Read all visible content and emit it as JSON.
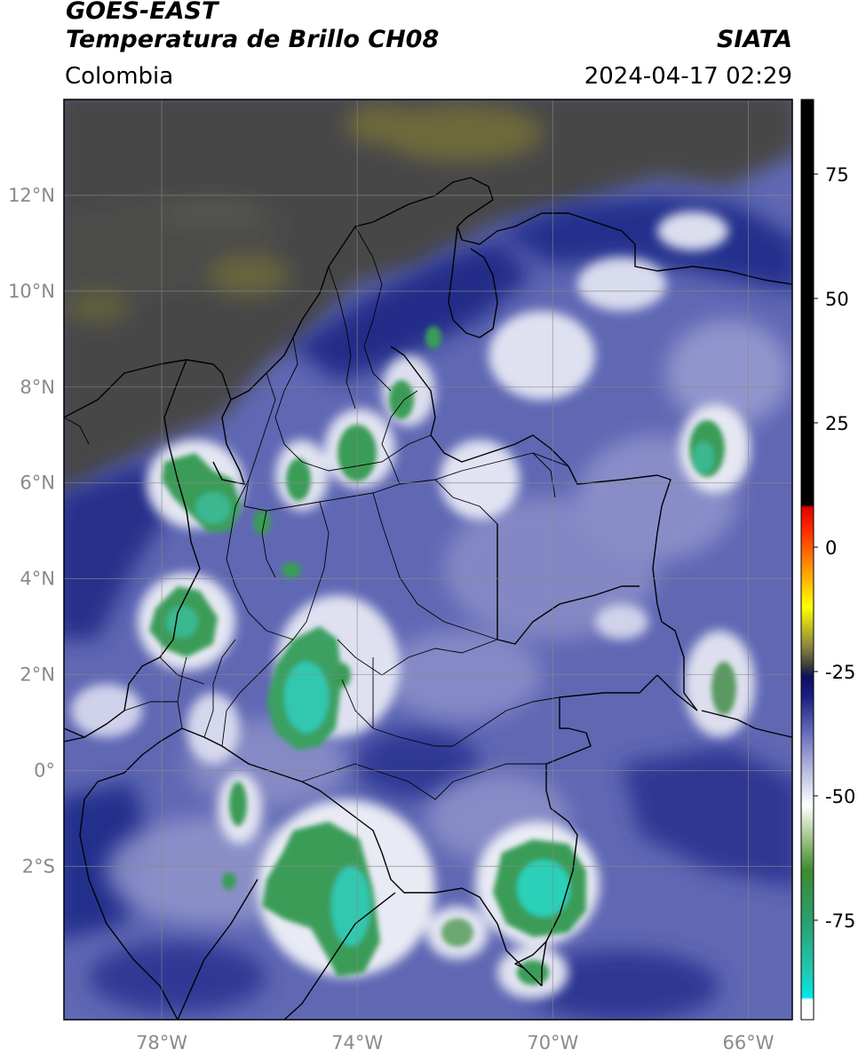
{
  "header": {
    "satellite": "GOES-EAST",
    "product": "Temperatura de Brillo CH08",
    "region": "Colombia",
    "brand": "SIATA",
    "datetime": "2024-04-17 02:29"
  },
  "map": {
    "lat_labels": [
      {
        "value": 12,
        "label": "12°N"
      },
      {
        "value": 10,
        "label": "10°N"
      },
      {
        "value": 8,
        "label": "8°N"
      },
      {
        "value": 6,
        "label": "6°N"
      },
      {
        "value": 4,
        "label": "4°N"
      },
      {
        "value": 2,
        "label": "2°N"
      },
      {
        "value": 0,
        "label": "0°"
      },
      {
        "value": -2,
        "label": "2°S"
      }
    ],
    "lon_labels": [
      {
        "value": -78,
        "label": "78°W"
      },
      {
        "value": -74,
        "label": "74°W"
      },
      {
        "value": -70,
        "label": "70°W"
      },
      {
        "value": -66,
        "label": "66°W"
      }
    ],
    "extent": {
      "lon_min": -80,
      "lon_max": -65.1,
      "lat_min": -5.2,
      "lat_max": 14
    },
    "colors": {
      "dry_air": "#4a4a48",
      "dry_air_olive": "#6b6a3c",
      "moist_navy": "#1c2680",
      "moist_blue": "#5058a8",
      "moist_lavender": "#8a8fc8",
      "cloud_white": "#eef0f8",
      "convective_green": "#3a9a55",
      "convective_cyan": "#2ed6c0",
      "border_line": "#000000",
      "grid_line": "#888888"
    }
  },
  "colorbar": {
    "vmin": -95,
    "vmax": 90,
    "ticks": [
      {
        "value": 75,
        "label": "75"
      },
      {
        "value": 50,
        "label": "50"
      },
      {
        "value": 25,
        "label": "25"
      },
      {
        "value": 0,
        "label": "0"
      },
      {
        "value": -25,
        "label": "-25"
      },
      {
        "value": -50,
        "label": "-50"
      },
      {
        "value": -75,
        "label": "-75"
      }
    ],
    "stops": [
      {
        "value": -95,
        "color": "#ffffff"
      },
      {
        "value": -91,
        "color": "#ffffff"
      },
      {
        "value": -90.5,
        "color": "#00e8e8"
      },
      {
        "value": -85,
        "color": "#20c8b0"
      },
      {
        "value": -75,
        "color": "#2a9e70"
      },
      {
        "value": -65,
        "color": "#3e8a30"
      },
      {
        "value": -58,
        "color": "#a8c890"
      },
      {
        "value": -52,
        "color": "#ffffff"
      },
      {
        "value": -45,
        "color": "#b8bce0"
      },
      {
        "value": -38,
        "color": "#6e74c0"
      },
      {
        "value": -30,
        "color": "#1a1e80"
      },
      {
        "value": -26,
        "color": "#0c1060"
      },
      {
        "value": -24,
        "color": "#3a3a3a"
      },
      {
        "value": -20,
        "color": "#8a8440"
      },
      {
        "value": -12,
        "color": "#ffff00"
      },
      {
        "value": -5,
        "color": "#ffa000"
      },
      {
        "value": 3,
        "color": "#ff3000"
      },
      {
        "value": 8,
        "color": "#e00000"
      },
      {
        "value": 8.5,
        "color": "#000000"
      },
      {
        "value": 90,
        "color": "#000000"
      }
    ]
  }
}
